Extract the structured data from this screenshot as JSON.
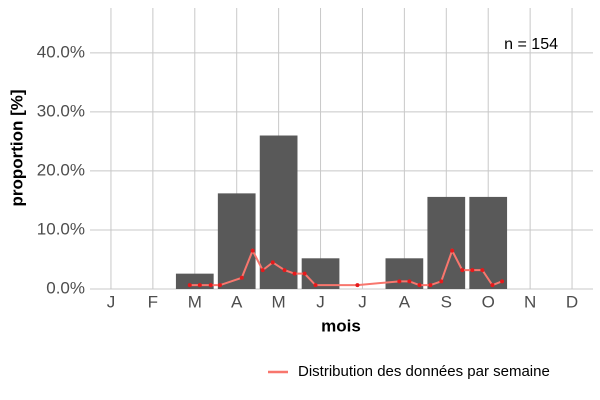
{
  "chart_data": [
    {
      "type": "bar",
      "x_label": "mois",
      "y_label": "proportion [%]",
      "annotation": "n = 154",
      "categories": [
        "J",
        "F",
        "M",
        "A",
        "M",
        "J",
        "J",
        "A",
        "S",
        "O",
        "N",
        "D"
      ],
      "values": [
        0,
        0,
        2.6,
        16.2,
        26.0,
        5.2,
        0,
        5.2,
        15.6,
        15.6,
        0,
        0
      ],
      "color": "#595959",
      "ylim": [
        0,
        47.6
      ],
      "yticks": [
        {
          "value": 0,
          "label": "0.0%"
        },
        {
          "value": 10,
          "label": "10.0%"
        },
        {
          "value": 20,
          "label": "20.0%"
        },
        {
          "value": 30,
          "label": "30.0%"
        },
        {
          "value": 40,
          "label": "40.0%"
        }
      ],
      "grid": true
    },
    {
      "type": "line",
      "name": "Distribution des données par semaine",
      "color": "#f8766d",
      "point_color": "#e41a1c",
      "xlim": [
        0.5,
        12.5
      ],
      "x": [
        2.88,
        3.12,
        3.38,
        3.6,
        4.12,
        4.38,
        4.62,
        4.86,
        5.14,
        5.38,
        5.62,
        5.88,
        6.88,
        7.88,
        8.12,
        8.36,
        8.62,
        8.88,
        9.14,
        9.38,
        9.62,
        9.86,
        10.1,
        10.33
      ],
      "values": [
        0.65,
        0.65,
        0.65,
        0.65,
        1.9,
        6.5,
        3.2,
        4.5,
        3.2,
        2.6,
        2.6,
        0.65,
        0.65,
        1.3,
        1.3,
        0.65,
        0.65,
        1.3,
        6.5,
        3.2,
        3.2,
        3.2,
        0.65,
        1.3
      ],
      "legend": "bottom-right"
    }
  ]
}
